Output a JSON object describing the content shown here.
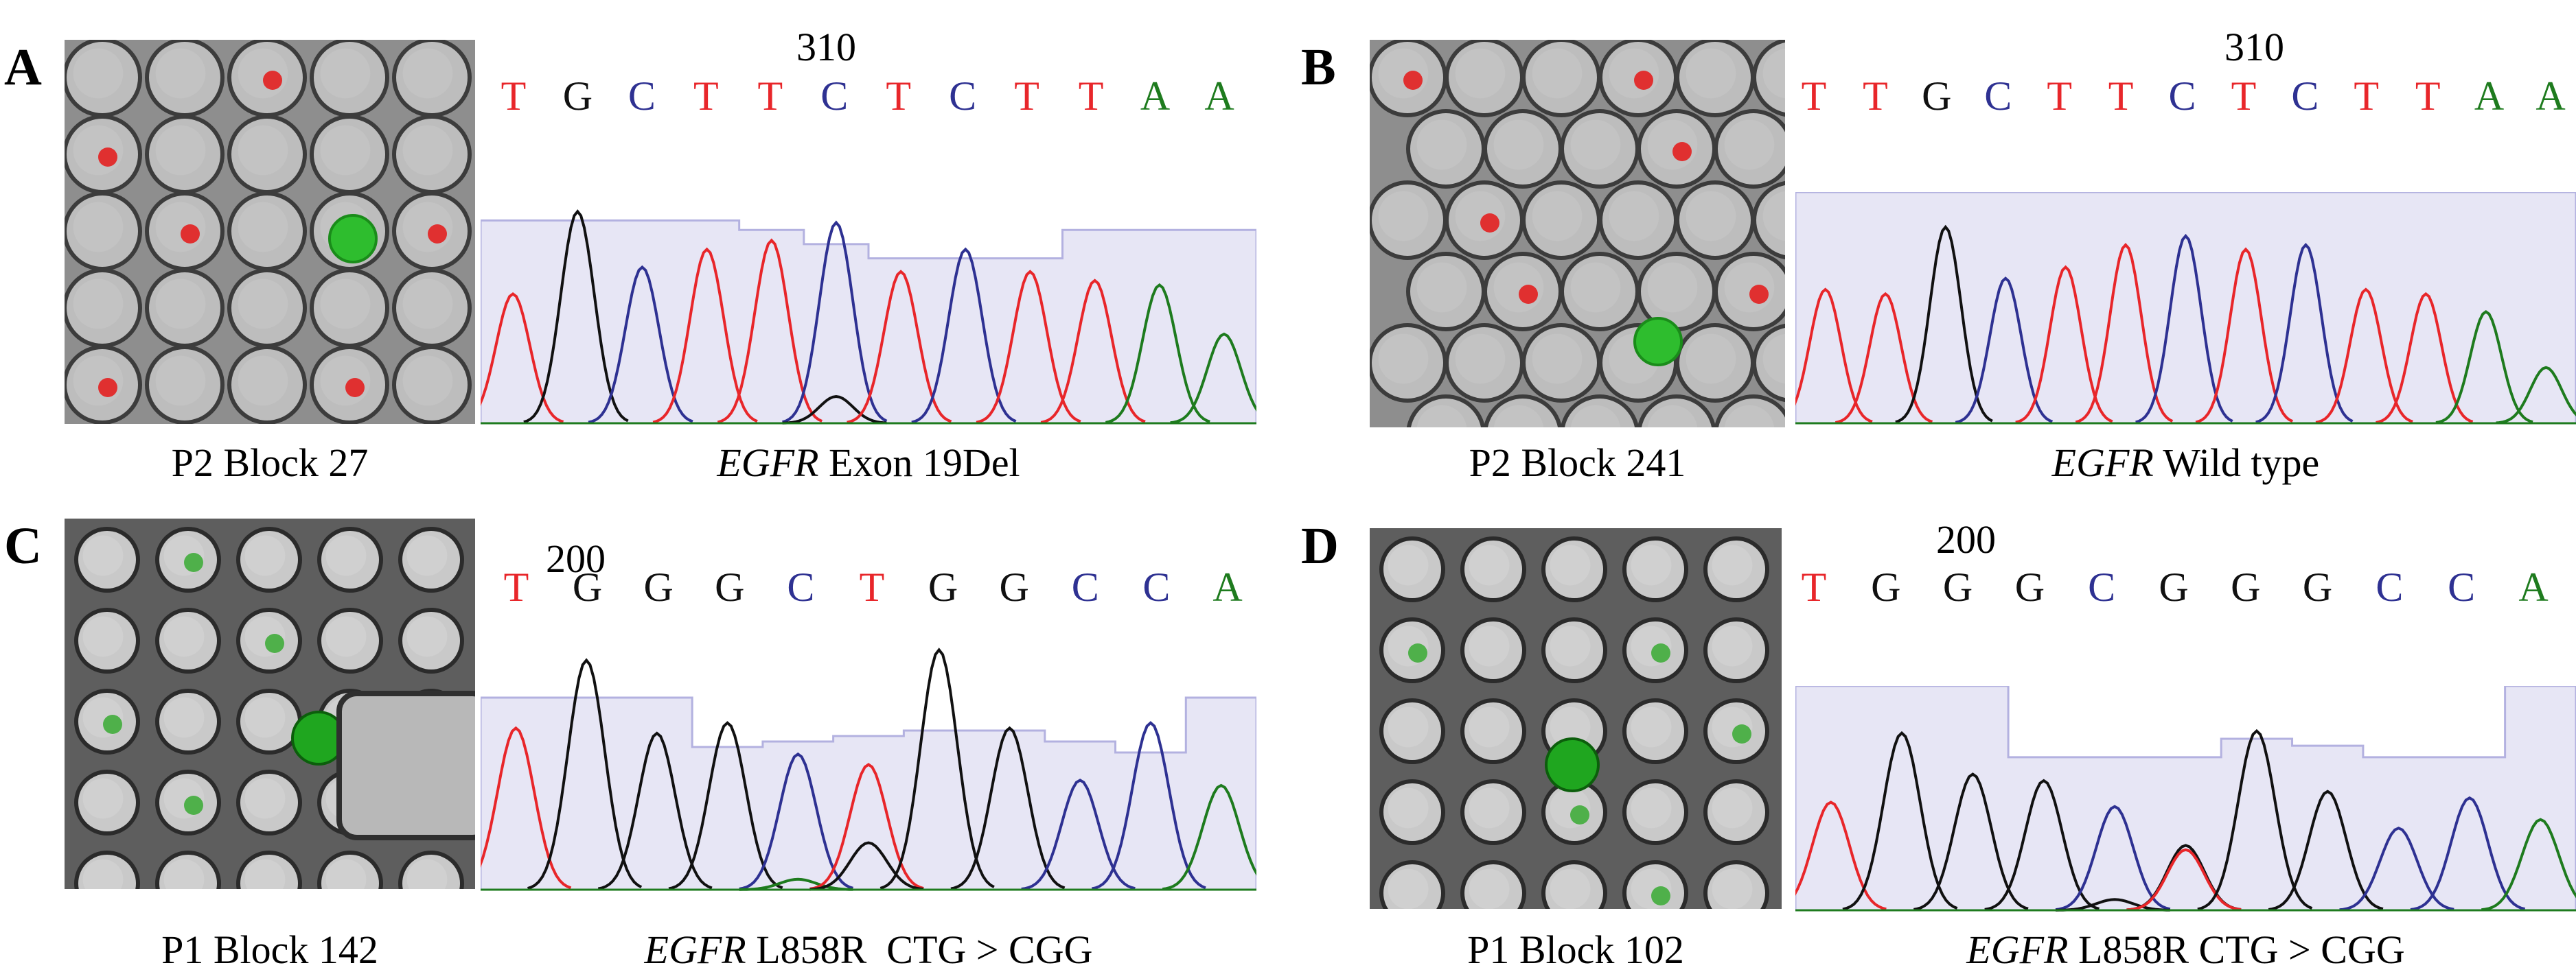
{
  "panels": [
    {
      "letter": "A",
      "micro_caption": "P2 Block 27",
      "gene": "EGFR",
      "seq_caption": "Exon 19Del",
      "position_label": "310",
      "bases": [
        "T",
        "G",
        "C",
        "T",
        "T",
        "C",
        "T",
        "C",
        "T",
        "T",
        "A",
        "A"
      ],
      "fluor": "red"
    },
    {
      "letter": "B",
      "micro_caption": "P2 Block 241",
      "gene": "EGFR",
      "seq_caption": "Wild type",
      "position_label": "310",
      "bases": [
        "T",
        "T",
        "G",
        "C",
        "T",
        "T",
        "C",
        "T",
        "C",
        "T",
        "T",
        "A",
        "A"
      ],
      "fluor": "red"
    },
    {
      "letter": "C",
      "micro_caption": "P1 Block 142",
      "gene": "EGFR",
      "seq_caption": "L858R  CTG > CGG",
      "position_label": "200",
      "bases": [
        "T",
        "G",
        "G",
        "G",
        "C",
        "T",
        "G",
        "G",
        "C",
        "C",
        "A"
      ],
      "fluor": "green"
    },
    {
      "letter": "D",
      "micro_caption": "P1 Block 102",
      "gene": "EGFR",
      "seq_caption": "L858R CTG > CGG",
      "position_label": "200",
      "bases": [
        "T",
        "G",
        "G",
        "G",
        "C",
        "G",
        "G",
        "G",
        "C",
        "C",
        "A"
      ],
      "fluor": "green"
    }
  ],
  "colors": {
    "T": "#e8262a",
    "G": "#111111",
    "C": "#2e3192",
    "A": "#1e7b1e",
    "quality_fill": "#e7e6f5",
    "quality_line": "#b3b1e0"
  }
}
